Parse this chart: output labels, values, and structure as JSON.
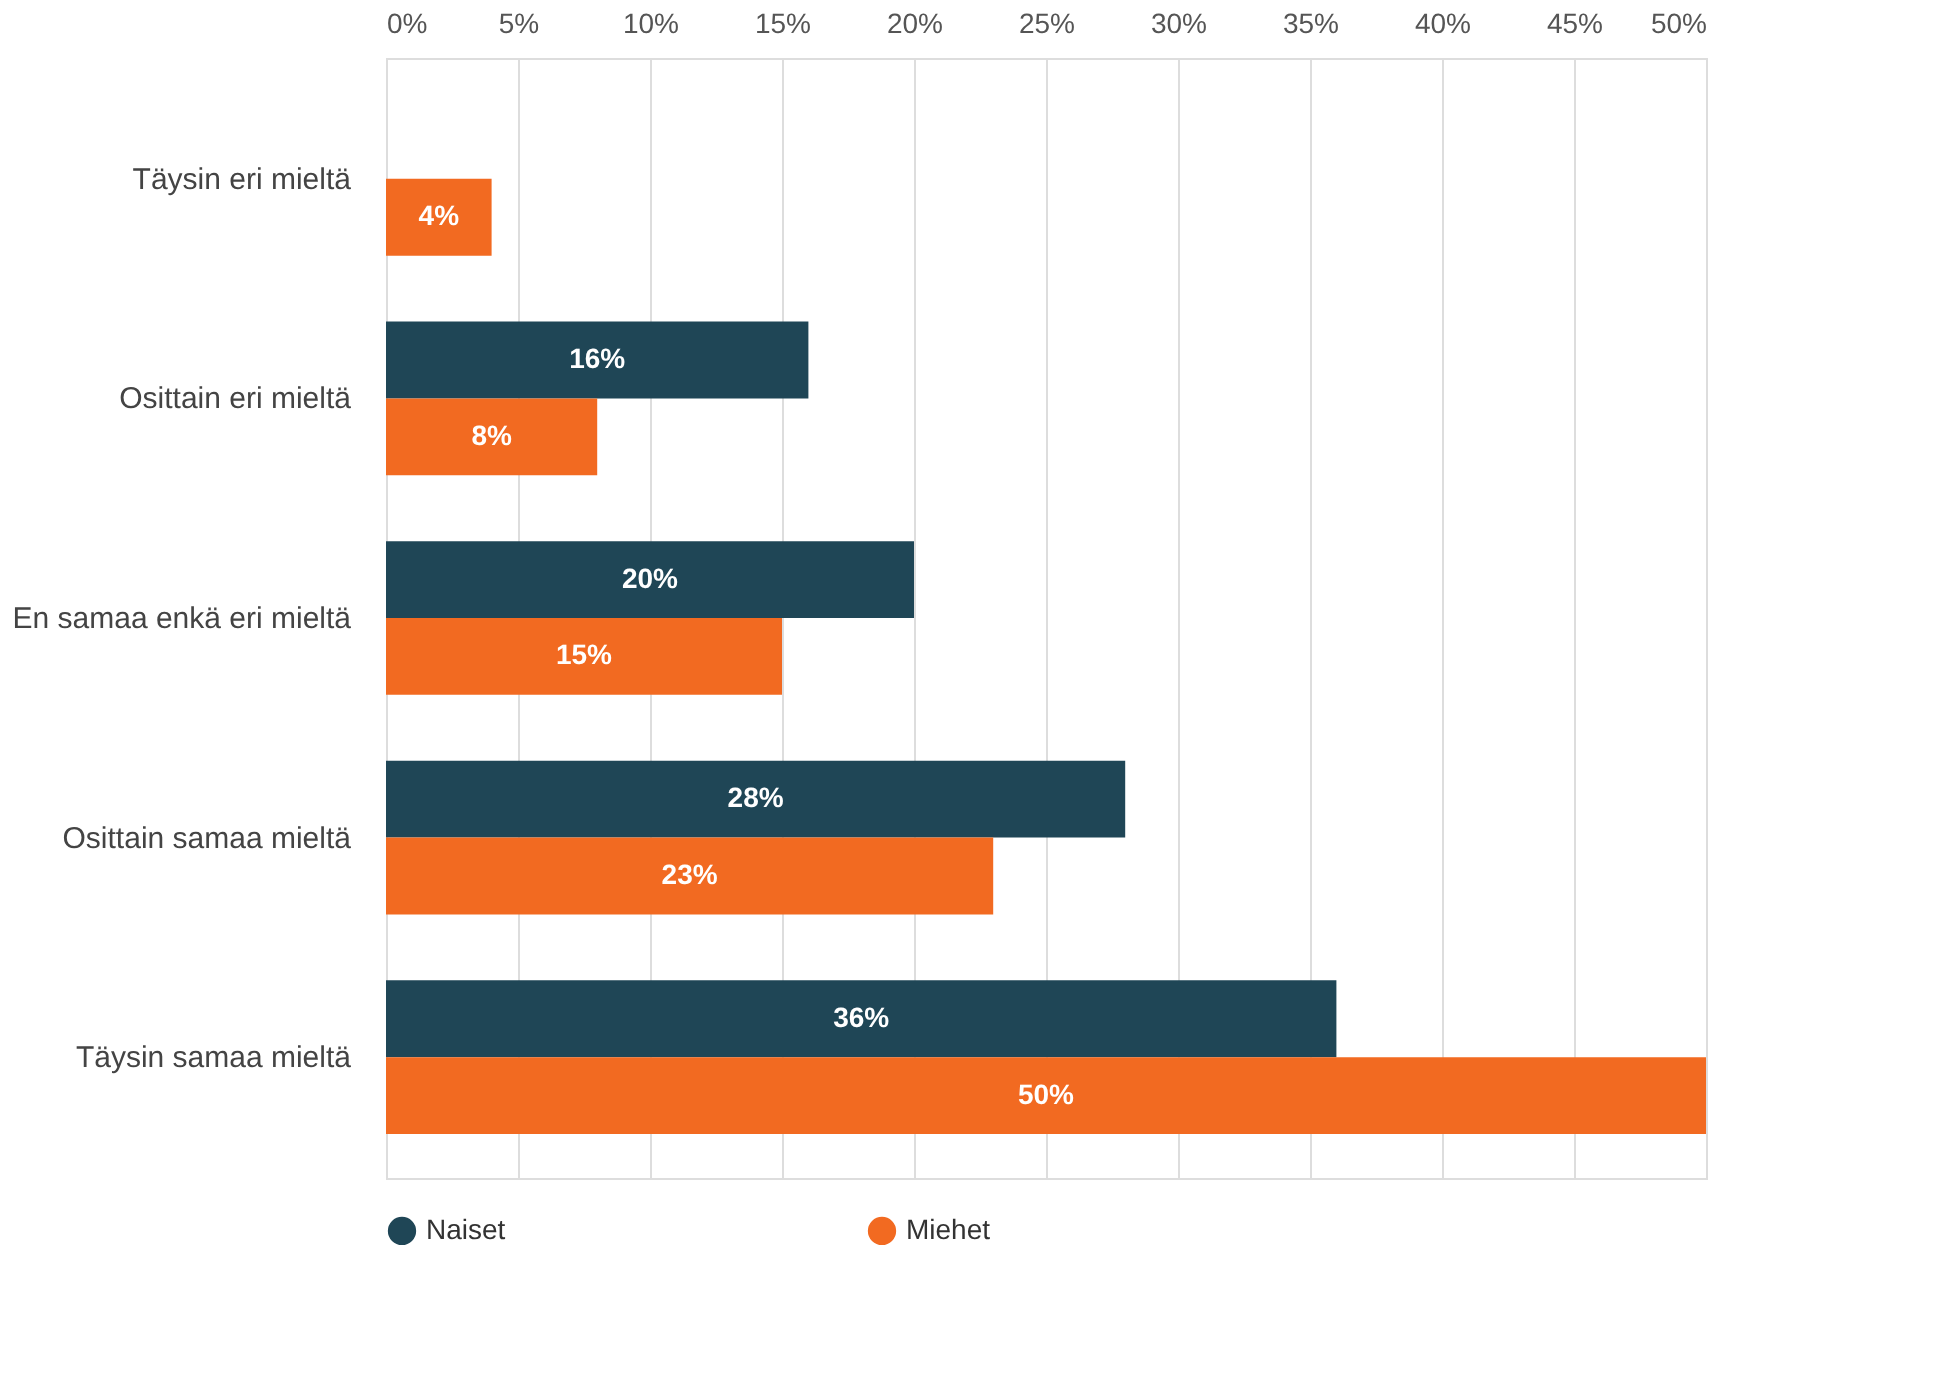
{
  "chart_data": {
    "type": "bar",
    "orientation": "horizontal",
    "categories": [
      "Täysin eri mieltä",
      "Osittain eri mieltä",
      "En samaa enkä eri mieltä",
      "Osittain samaa mieltä",
      "Täysin samaa mieltä"
    ],
    "series": [
      {
        "name": "Naiset",
        "color": "#1f4656",
        "values": [
          null,
          16,
          20,
          28,
          36
        ],
        "value_labels": [
          null,
          "16%",
          "20%",
          "28%",
          "36%"
        ]
      },
      {
        "name": "Miehet",
        "color": "#f26a21",
        "values": [
          4,
          8,
          15,
          23,
          50
        ],
        "value_labels": [
          "4%",
          "8%",
          "15%",
          "23%",
          "50%"
        ]
      }
    ],
    "xlim": [
      0,
      50
    ],
    "xticks": [
      {
        "value": 0,
        "label": "0%"
      },
      {
        "value": 5,
        "label": "5%"
      },
      {
        "value": 10,
        "label": "10%"
      },
      {
        "value": 15,
        "label": "15%"
      },
      {
        "value": 20,
        "label": "20%"
      },
      {
        "value": 25,
        "label": "25%"
      },
      {
        "value": 30,
        "label": "30%"
      },
      {
        "value": 35,
        "label": "35%"
      },
      {
        "value": 40,
        "label": "40%"
      },
      {
        "value": 45,
        "label": "45%"
      },
      {
        "value": 50,
        "label": "50%"
      }
    ],
    "grid": "x",
    "legend": "bottom",
    "marker": "circle"
  }
}
